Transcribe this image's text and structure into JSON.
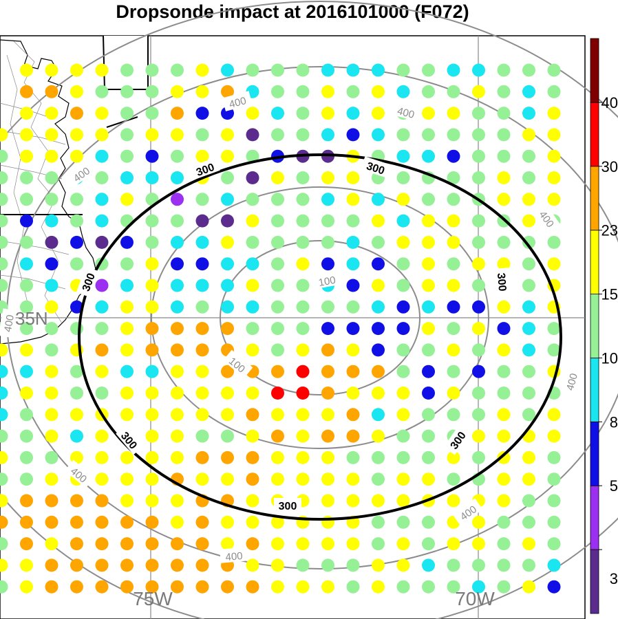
{
  "title": "Dropsonde impact at 2016101000 (F072)",
  "gridlines": {
    "lon_labels": [
      "75W",
      "70W"
    ],
    "lat_labels": [
      "35N"
    ]
  },
  "contours": {
    "highlighted_level": "300",
    "gray_levels": [
      "100",
      "400"
    ],
    "highlight_color": "#000000",
    "gray_color": "#8c8c8c"
  },
  "colorbar": {
    "labels": [
      "3",
      "5",
      "8",
      "10",
      "15",
      "23",
      "30",
      "40"
    ],
    "colors": [
      "#5b2c8e",
      "#9b30f0",
      "#1010e6",
      "#19e6f0",
      "#96f096",
      "#ffff00",
      "#ffa500",
      "#ff0000",
      "#800000"
    ]
  },
  "dots": {
    "legend": "0=violet-dark 1=violet 2=blue 3=cyan 4=green 5=yellow 6=orange 7=red",
    "rows": [
      "5..5555444534443334433444",
      "55.6654445563445453445434",
      "5.5.5565446225345354554435",
      "55.55555455450443234444455",
      "55.45553424554200543324445",
      "5.5444434333540545544444545",
      "34444443541434443535444555",
      "4432442343444005444453554454",
      "43222044020243354444345554444",
      "2221543244452233452324545545",
      "100344144351353335443254554445",
      "3234444523553433444432322535",
      "4433444444444566664442222545234",
      "3434355456566665456524454534",
      "34433545335566676664242445",
      "3344435544555555776555254444",
      "34434555555556555635444545",
      "32444535555445656654445555",
      "224554455555666555444454554",
      "1444555556556555545544554",
      "45556666555665555555555544",
      "45566666665655555544455444",
      "44546566666656555545455454",
      "4554455666666665544455344443",
      "45545666666666555454443452"
    ]
  }
}
